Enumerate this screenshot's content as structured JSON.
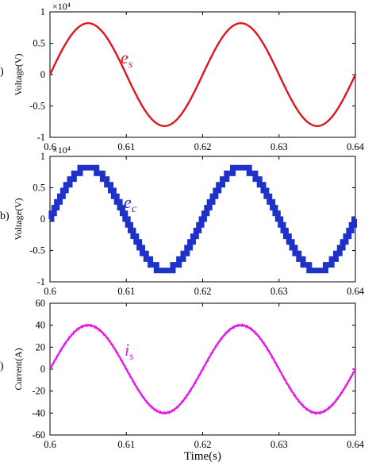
{
  "chart_data": [
    {
      "type": "line",
      "panel_label": ")",
      "multiplier_label": "×10⁴",
      "ylabel": "Voltage(V)",
      "xlabel": "",
      "xlim": [
        0.6,
        0.64
      ],
      "ylim": [
        -1,
        1
      ],
      "xticks": [
        "0.6",
        "0.61",
        "0.62",
        "0.63",
        "0.64"
      ],
      "yticks": [
        "1",
        "0.5",
        "0",
        "-0.5",
        "-1"
      ],
      "annotation": {
        "main": "e",
        "sub": "s"
      },
      "color": "#e0141e",
      "series": [
        {
          "style": "sine",
          "amplitude": 0.82,
          "period": 0.02,
          "phase_start": 0.6,
          "x": [
            0.6,
            0.605,
            0.61,
            0.615,
            0.62,
            0.625,
            0.63,
            0.635,
            0.64
          ],
          "values": [
            0,
            0.82,
            0,
            -0.82,
            0,
            0.82,
            0,
            -0.82,
            0
          ]
        }
      ]
    },
    {
      "type": "line",
      "panel_label": "b)",
      "multiplier_label": "×10⁴",
      "ylabel": "Voltage(V)",
      "xlabel": "",
      "xlim": [
        0.6,
        0.64
      ],
      "ylim": [
        -1,
        1
      ],
      "xticks": [
        "0.6",
        "0.61",
        "0.62",
        "0.63",
        "0.64"
      ],
      "yticks": [
        "1",
        "0.5",
        "0",
        "-0.5",
        "-1"
      ],
      "annotation": {
        "main": "e",
        "sub": "c"
      },
      "color": "#1e32c8",
      "series": [
        {
          "style": "staircase",
          "amplitude": 0.82,
          "period": 0.02,
          "phase_start": 0.6,
          "x": [
            0.6,
            0.605,
            0.61,
            0.615,
            0.62,
            0.625,
            0.63,
            0.635,
            0.64
          ],
          "values": [
            0,
            0.82,
            0,
            -0.82,
            0,
            0.82,
            0,
            -0.82,
            0
          ]
        }
      ]
    },
    {
      "type": "line",
      "panel_label": ")",
      "multiplier_label": "",
      "ylabel": "Current(A)",
      "xlabel": "Time(s)",
      "xlim": [
        0.6,
        0.64
      ],
      "ylim": [
        -60,
        60
      ],
      "xticks": [
        "0.6",
        "0.61",
        "0.62",
        "0.63",
        "0.64"
      ],
      "yticks": [
        "60",
        "40",
        "20",
        "0",
        "-20",
        "-40",
        "-60"
      ],
      "annotation": {
        "main": "i",
        "sub": "s"
      },
      "color": "#e619e6",
      "series": [
        {
          "style": "sine",
          "amplitude": 40,
          "period": 0.02,
          "phase_start": 0.6,
          "x": [
            0.6,
            0.605,
            0.61,
            0.615,
            0.62,
            0.625,
            0.63,
            0.635,
            0.64
          ],
          "values": [
            0,
            40,
            0,
            -40,
            0,
            40,
            0,
            -40,
            0
          ]
        }
      ]
    }
  ]
}
